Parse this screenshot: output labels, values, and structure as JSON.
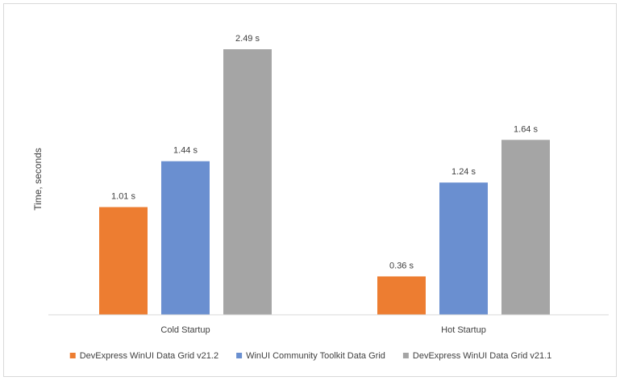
{
  "chart_data": {
    "type": "bar",
    "title": "",
    "xlabel": "",
    "ylabel": "Time, seconds",
    "categories": [
      "Cold Startup",
      "Hot Startup"
    ],
    "series": [
      {
        "name": "DevExpress WinUI Data Grid v21.2",
        "color": "#ed7d31",
        "values": [
          1.01,
          0.36
        ],
        "labels": [
          "1.01 s",
          "0.36 s"
        ]
      },
      {
        "name": "WinUI Community Toolkit Data Grid",
        "color": "#6a8fd0",
        "values": [
          1.44,
          1.24
        ],
        "labels": [
          "1.44 s",
          "1.24 s"
        ]
      },
      {
        "name": "DevExpress WinUI Data Grid v21.1",
        "color": "#a5a5a5",
        "values": [
          2.49,
          1.64
        ],
        "labels": [
          "2.49 s",
          "1.64 s"
        ]
      }
    ],
    "ylim": [
      0,
      2.49
    ],
    "grid": false,
    "legend": "bottom"
  }
}
